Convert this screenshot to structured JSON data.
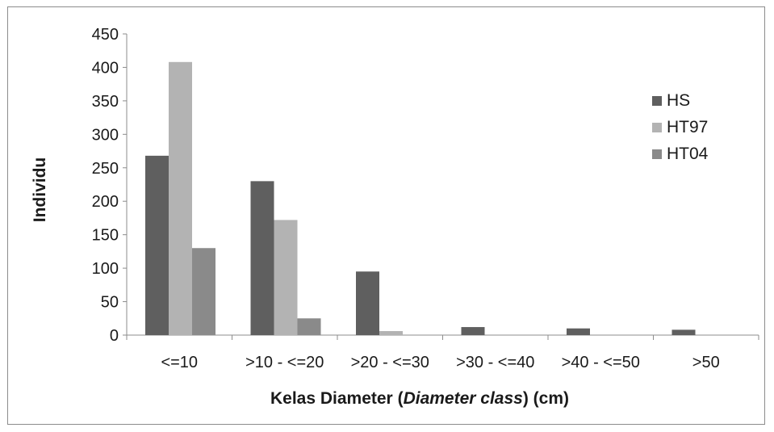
{
  "chart_data": {
    "type": "bar",
    "categories": [
      "<=10",
      ">10 - <=20",
      ">20 - <=30",
      ">30 - <=40",
      ">40 - <=50",
      ">50"
    ],
    "series": [
      {
        "name": "HS",
        "color": "#5f5f5f",
        "values": [
          268,
          230,
          95,
          12,
          10,
          8
        ]
      },
      {
        "name": "HT97",
        "color": "#b3b3b3",
        "values": [
          408,
          172,
          6,
          0,
          0,
          0
        ]
      },
      {
        "name": "HT04",
        "color": "#8a8a8a",
        "values": [
          130,
          25,
          0,
          0,
          0,
          0
        ]
      }
    ],
    "title": "",
    "xlabel_parts": [
      "Kelas Diameter (",
      "Diameter class",
      ") (cm)"
    ],
    "ylabel": "Individu",
    "ylim": [
      0,
      450
    ],
    "yticks": [
      0,
      50,
      100,
      150,
      200,
      250,
      300,
      350,
      400,
      450
    ],
    "grid": false,
    "legend_position": "top-right"
  }
}
